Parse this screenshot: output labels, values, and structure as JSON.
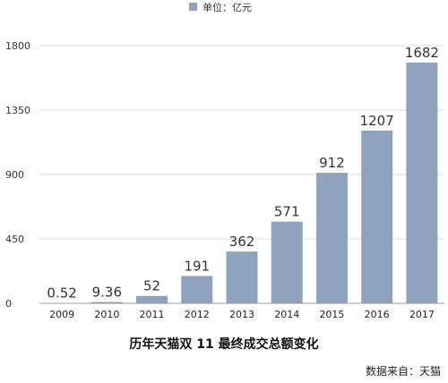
{
  "chart_data": {
    "type": "bar",
    "title": "历年天猫双 11 最终成交总额变化",
    "categories": [
      "2009",
      "2010",
      "2011",
      "2012",
      "2013",
      "2014",
      "2015",
      "2016",
      "2017"
    ],
    "series": [
      {
        "name": "单位：亿元",
        "values": [
          0.52,
          9.36,
          52,
          191,
          362,
          571,
          912,
          1207,
          1682
        ]
      }
    ],
    "value_labels": [
      "0.52",
      "9.36",
      "52",
      "191",
      "362",
      "571",
      "912",
      "1207",
      "1682"
    ],
    "yticks": [
      0,
      450,
      900,
      1350,
      1800
    ],
    "ylim": [
      0,
      1800
    ],
    "grid": true,
    "legend_position": "top",
    "bar_color": "#8fa3bf",
    "source": "数据来自：天猫"
  }
}
